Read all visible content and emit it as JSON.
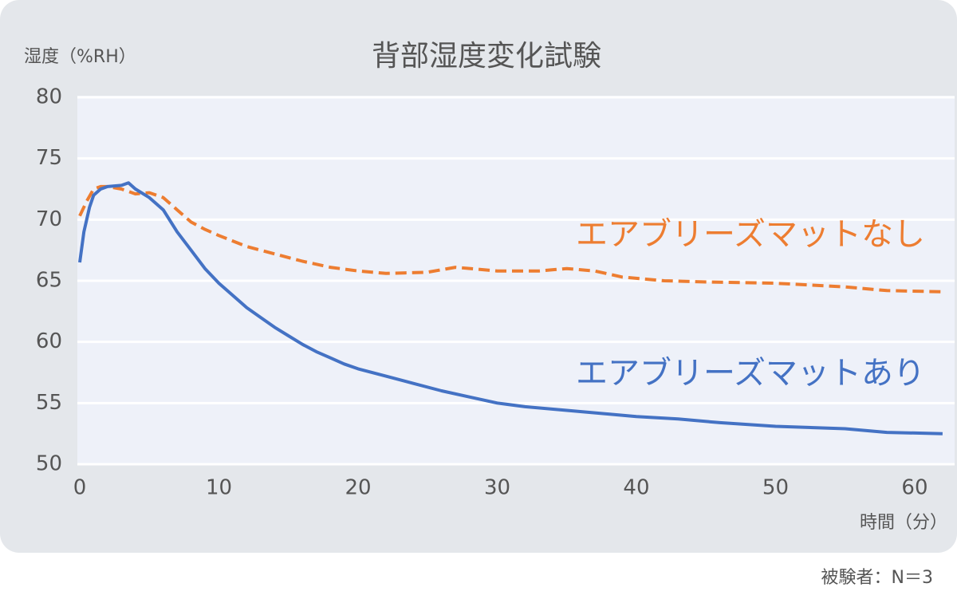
{
  "chart_data": {
    "type": "line",
    "title": "背部湿度変化試験",
    "y_label": "湿度（%RH）",
    "x_label": "時間（分）",
    "note": "被験者：N＝3",
    "xlim": [
      0,
      62.5
    ],
    "ylim": [
      50,
      80
    ],
    "xticks": [
      0,
      10,
      20,
      30,
      40,
      50,
      60
    ],
    "yticks": [
      50,
      55,
      60,
      65,
      70,
      75,
      80
    ],
    "grid": true,
    "series": [
      {
        "name": "エアブリーズマットなし",
        "color": "#ed7d31",
        "dashed": true,
        "x": [
          0,
          0.5,
          1,
          1.5,
          2,
          3,
          4,
          5,
          6,
          7,
          8,
          9,
          10,
          12,
          14,
          16,
          18,
          20,
          22,
          25,
          27,
          30,
          33,
          35,
          37,
          39,
          42,
          45,
          50,
          55,
          58,
          62
        ],
        "values": [
          70.3,
          71.5,
          72.5,
          72.7,
          72.7,
          72.5,
          72.1,
          72.2,
          71.8,
          70.8,
          69.8,
          69.2,
          68.7,
          67.8,
          67.2,
          66.6,
          66.1,
          65.8,
          65.6,
          65.7,
          66.1,
          65.8,
          65.8,
          66,
          65.8,
          65.3,
          65,
          64.9,
          64.8,
          64.5,
          64.2,
          64.1
        ]
      },
      {
        "name": "エアブリーズマットあり",
        "color": "#4472c4",
        "dashed": false,
        "x": [
          0,
          0.3,
          0.7,
          1,
          1.5,
          2,
          3,
          3.5,
          4,
          5,
          6,
          7,
          8,
          9,
          10,
          11,
          12,
          13,
          14,
          15,
          16,
          17,
          18,
          19,
          20,
          22,
          24,
          26,
          28,
          30,
          32,
          35,
          38,
          40,
          43,
          46,
          50,
          55,
          58,
          62
        ],
        "values": [
          66.5,
          69,
          71,
          72,
          72.5,
          72.7,
          72.8,
          73,
          72.5,
          71.8,
          70.8,
          69,
          67.5,
          66,
          64.8,
          63.8,
          62.8,
          62,
          61.2,
          60.5,
          59.8,
          59.2,
          58.7,
          58.2,
          57.8,
          57.2,
          56.6,
          56,
          55.5,
          55,
          54.7,
          54.4,
          54.1,
          53.9,
          53.7,
          53.4,
          53.1,
          52.9,
          52.6,
          52.5
        ]
      }
    ]
  }
}
